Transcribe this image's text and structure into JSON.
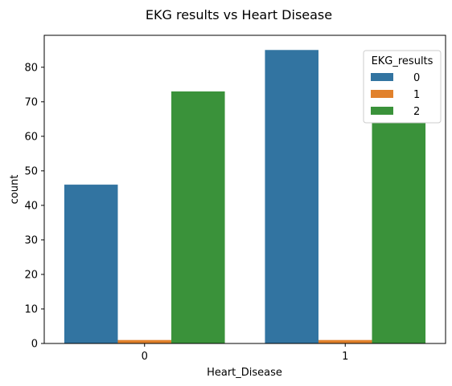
{
  "chart_data": {
    "type": "bar",
    "title": "EKG results vs Heart Disease",
    "xlabel": "Heart_Disease",
    "ylabel": "count",
    "categories": [
      "0",
      "1"
    ],
    "series": [
      {
        "name": "0",
        "values": [
          46,
          85
        ],
        "color": "#3274a1"
      },
      {
        "name": "1",
        "values": [
          1,
          1
        ],
        "color": "#e1812c"
      },
      {
        "name": "2",
        "values": [
          73,
          64
        ],
        "color": "#3a923a"
      }
    ],
    "yticks": [
      0,
      10,
      20,
      30,
      40,
      50,
      60,
      70,
      80
    ],
    "ylim": [
      0,
      89.25
    ],
    "grid": false,
    "legend": {
      "title": "EKG_results",
      "position": "top-right"
    }
  }
}
